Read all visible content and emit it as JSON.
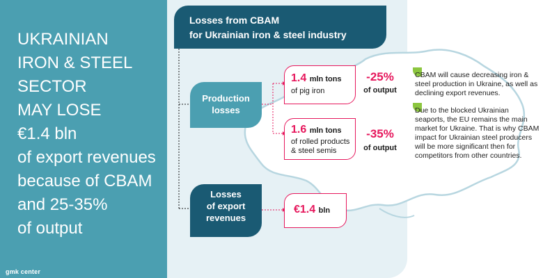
{
  "left_panel": {
    "headline_lines": [
      "UKRAINIAN",
      "IRON & STEEL",
      "SECTOR",
      "MAY LOSE",
      "€1.4 bln",
      "of export revenues",
      "because of CBAM",
      "and 25-35%",
      "of output"
    ],
    "brand": "gmk center"
  },
  "title": {
    "line1": "Losses from CBAM",
    "line2": "for Ukrainian iron & steel industry"
  },
  "categories": {
    "production": "Production losses",
    "production_lines": [
      "Production",
      "losses"
    ],
    "export": "Losses of export revenues",
    "export_lines": [
      "Losses",
      "of export",
      "revenues"
    ]
  },
  "values": {
    "pig_iron": {
      "number": "1.4",
      "unit": "mln tons",
      "sub": "of pig iron",
      "pct": "-25%",
      "pct_label": "of output"
    },
    "rolled": {
      "number": "1.6",
      "unit": "mln tons",
      "sub1": "of rolled products",
      "sub2": "& steel semis",
      "pct": "-35%",
      "pct_label": "of output"
    },
    "export": {
      "number": "€1.4",
      "unit": "bln"
    }
  },
  "notes": [
    "CBAM will cause decreasing iron & steel production in Ukraine, as well as declining export revenues.",
    "Due to the blocked Ukrainian seaports, the EU remains the main market for Ukraine. That is why CBAM impact for Ukrainian steel producers will be more significant then for competitors from other countries."
  ],
  "colors": {
    "teal": "#4b9fb1",
    "navy": "#1a5a73",
    "accent": "#e6175c",
    "green": "#8cc63f",
    "light_bg": "#e6f1f5"
  }
}
